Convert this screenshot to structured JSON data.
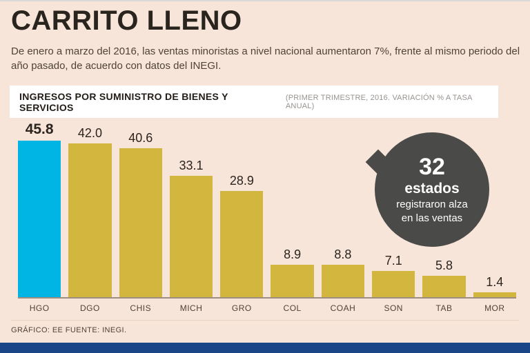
{
  "page": {
    "title": "CARRITO LLENO",
    "subtitle": "De enero a marzo del 2016, las ventas minoristas a nivel nacional aumentaron 7%, frente al mismo periodo del año pasado, de acuerdo con datos del INEGI.",
    "footer": "GRÁFICO: EE  FUENTE: INEGI."
  },
  "chart_header": {
    "title": "INGRESOS POR SUMINISTRO DE BIENES Y SERVICIOS",
    "subtitle": "(PRIMER TRIMESTRE, 2016. VARIACIÓN % A TASA ANUAL)"
  },
  "badge": {
    "number": "32",
    "bold_label": "estados",
    "text_line1": "registraron alza",
    "text_line2": "en las ventas"
  },
  "chart_data": {
    "type": "bar",
    "title": "INGRESOS POR SUMINISTRO DE BIENES Y SERVICIOS (PRIMER TRIMESTRE, 2016. VARIACIÓN % A TASA ANUAL)",
    "categories": [
      "HGO",
      "DGO",
      "CHIS",
      "MICH",
      "GRO",
      "COL",
      "COAH",
      "SON",
      "TAB",
      "MOR"
    ],
    "values": [
      45.8,
      42.0,
      40.6,
      33.1,
      28.9,
      8.9,
      8.8,
      7.1,
      5.8,
      1.4
    ],
    "value_labels": [
      "45.8",
      "42.0",
      "40.6",
      "33.1",
      "28.9",
      "8.9",
      "8.8",
      "7.1",
      "5.8",
      "1.4"
    ],
    "xlabel": "",
    "ylabel": "",
    "ylim": [
      0,
      48
    ],
    "grid": false,
    "legend": "none",
    "highlight_index": 0,
    "bar_color": "#d3b63e",
    "highlight_color": "#00b4e4"
  },
  "colors": {
    "background": "#f8e5d9",
    "bar_gold": "#d3b63e",
    "bar_cyan": "#00b4e4",
    "badge_gray": "#4a4a48",
    "bottom_strip_blue": "#1a4687",
    "text_dark": "#2a241e"
  }
}
